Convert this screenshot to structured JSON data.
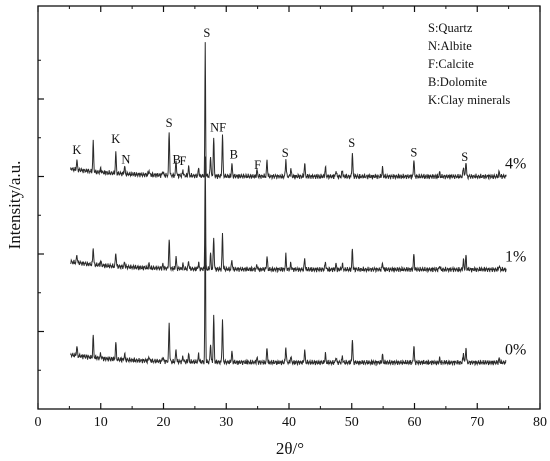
{
  "chart_data": {
    "type": "line",
    "xlabel": "2θ/°",
    "ylabel": "Intensity/a.u.",
    "xlim": [
      0,
      80
    ],
    "x_ticks": [
      "0",
      "10",
      "20",
      "30",
      "40",
      "50",
      "60",
      "70",
      "80"
    ],
    "legend_position": "top-right",
    "legend_entries": [
      "S:Quartz",
      "N:Albite",
      "F:Calcite",
      "B:Dolomite",
      "K:Clay minerals"
    ],
    "series": [
      {
        "name": "4%",
        "baseline": 3,
        "peaks": [
          {
            "x": 6.2,
            "h": 0.12
          },
          {
            "x": 8.8,
            "h": 0.38
          },
          {
            "x": 10.0,
            "h": 0.05
          },
          {
            "x": 12.4,
            "h": 0.27
          },
          {
            "x": 13.8,
            "h": 0.1
          },
          {
            "x": 17.7,
            "h": 0.06
          },
          {
            "x": 19.9,
            "h": 0.06
          },
          {
            "x": 20.9,
            "h": 0.58
          },
          {
            "x": 22.0,
            "h": 0.2
          },
          {
            "x": 23.1,
            "h": 0.07
          },
          {
            "x": 24.0,
            "h": 0.12
          },
          {
            "x": 25.6,
            "h": 0.1
          },
          {
            "x": 26.65,
            "h": 1.73
          },
          {
            "x": 27.5,
            "h": 0.26
          },
          {
            "x": 28.0,
            "h": 0.5
          },
          {
            "x": 29.4,
            "h": 0.54
          },
          {
            "x": 30.9,
            "h": 0.16
          },
          {
            "x": 34.9,
            "h": 0.08
          },
          {
            "x": 36.5,
            "h": 0.21
          },
          {
            "x": 39.5,
            "h": 0.22
          },
          {
            "x": 40.3,
            "h": 0.1
          },
          {
            "x": 42.5,
            "h": 0.17
          },
          {
            "x": 45.8,
            "h": 0.12
          },
          {
            "x": 47.5,
            "h": 0.08
          },
          {
            "x": 48.5,
            "h": 0.08
          },
          {
            "x": 50.1,
            "h": 0.3
          },
          {
            "x": 54.9,
            "h": 0.11
          },
          {
            "x": 59.9,
            "h": 0.22
          },
          {
            "x": 64.0,
            "h": 0.05
          },
          {
            "x": 67.8,
            "h": 0.13
          },
          {
            "x": 68.2,
            "h": 0.2
          },
          {
            "x": 73.5,
            "h": 0.06
          }
        ]
      },
      {
        "name": "1%",
        "baseline": 1.8,
        "peaks": [
          {
            "x": 6.2,
            "h": 0.1
          },
          {
            "x": 8.8,
            "h": 0.22
          },
          {
            "x": 10.0,
            "h": 0.05
          },
          {
            "x": 12.4,
            "h": 0.18
          },
          {
            "x": 13.8,
            "h": 0.06
          },
          {
            "x": 17.7,
            "h": 0.05
          },
          {
            "x": 19.9,
            "h": 0.05
          },
          {
            "x": 20.9,
            "h": 0.38
          },
          {
            "x": 22.0,
            "h": 0.15
          },
          {
            "x": 23.1,
            "h": 0.06
          },
          {
            "x": 24.0,
            "h": 0.1
          },
          {
            "x": 25.6,
            "h": 0.08
          },
          {
            "x": 26.65,
            "h": 1.47
          },
          {
            "x": 27.5,
            "h": 0.2
          },
          {
            "x": 28.0,
            "h": 0.42
          },
          {
            "x": 29.4,
            "h": 0.45
          },
          {
            "x": 30.9,
            "h": 0.12
          },
          {
            "x": 34.9,
            "h": 0.06
          },
          {
            "x": 36.5,
            "h": 0.17
          },
          {
            "x": 39.5,
            "h": 0.18
          },
          {
            "x": 40.3,
            "h": 0.08
          },
          {
            "x": 42.5,
            "h": 0.14
          },
          {
            "x": 45.8,
            "h": 0.1
          },
          {
            "x": 47.5,
            "h": 0.07
          },
          {
            "x": 48.5,
            "h": 0.07
          },
          {
            "x": 50.1,
            "h": 0.26
          },
          {
            "x": 54.9,
            "h": 0.09
          },
          {
            "x": 59.9,
            "h": 0.2
          },
          {
            "x": 64.0,
            "h": 0.05
          },
          {
            "x": 67.8,
            "h": 0.12
          },
          {
            "x": 68.2,
            "h": 0.18
          },
          {
            "x": 73.5,
            "h": 0.05
          }
        ]
      },
      {
        "name": "0%",
        "baseline": 0.6,
        "peaks": [
          {
            "x": 6.2,
            "h": 0.12
          },
          {
            "x": 8.8,
            "h": 0.28
          },
          {
            "x": 10.0,
            "h": 0.06
          },
          {
            "x": 12.4,
            "h": 0.22
          },
          {
            "x": 13.8,
            "h": 0.08
          },
          {
            "x": 17.7,
            "h": 0.06
          },
          {
            "x": 19.9,
            "h": 0.06
          },
          {
            "x": 20.9,
            "h": 0.5
          },
          {
            "x": 22.0,
            "h": 0.16
          },
          {
            "x": 23.1,
            "h": 0.07
          },
          {
            "x": 24.0,
            "h": 0.1
          },
          {
            "x": 25.6,
            "h": 0.1
          },
          {
            "x": 26.65,
            "h": 2.1
          },
          {
            "x": 27.5,
            "h": 0.24
          },
          {
            "x": 28.0,
            "h": 0.6
          },
          {
            "x": 29.4,
            "h": 0.55
          },
          {
            "x": 30.9,
            "h": 0.14
          },
          {
            "x": 34.9,
            "h": 0.06
          },
          {
            "x": 36.5,
            "h": 0.19
          },
          {
            "x": 39.5,
            "h": 0.2
          },
          {
            "x": 40.3,
            "h": 0.08
          },
          {
            "x": 42.5,
            "h": 0.16
          },
          {
            "x": 45.8,
            "h": 0.11
          },
          {
            "x": 47.5,
            "h": 0.07
          },
          {
            "x": 48.5,
            "h": 0.08
          },
          {
            "x": 50.1,
            "h": 0.3
          },
          {
            "x": 54.9,
            "h": 0.1
          },
          {
            "x": 59.9,
            "h": 0.22
          },
          {
            "x": 64.0,
            "h": 0.05
          },
          {
            "x": 67.8,
            "h": 0.12
          },
          {
            "x": 68.2,
            "h": 0.2
          },
          {
            "x": 73.5,
            "h": 0.05
          }
        ]
      }
    ],
    "peak_labels": [
      {
        "text": "K",
        "x": 6.2,
        "y": 3.29
      },
      {
        "text": "K",
        "x": 12.4,
        "y": 3.43
      },
      {
        "text": "N",
        "x": 14.0,
        "y": 3.17
      },
      {
        "text": "S",
        "x": 20.9,
        "y": 3.64
      },
      {
        "text": "B",
        "x": 22.1,
        "y": 3.17
      },
      {
        "text": "F",
        "x": 23.1,
        "y": 3.15
      },
      {
        "text": "S",
        "x": 26.9,
        "y": 4.8
      },
      {
        "text": "NF",
        "x": 28.7,
        "y": 3.58
      },
      {
        "text": "B",
        "x": 31.2,
        "y": 3.23
      },
      {
        "text": "F",
        "x": 35.0,
        "y": 3.1
      },
      {
        "text": "S",
        "x": 39.4,
        "y": 3.25
      },
      {
        "text": "S",
        "x": 50.0,
        "y": 3.38
      },
      {
        "text": "S",
        "x": 59.9,
        "y": 3.26
      },
      {
        "text": "S",
        "x": 68.0,
        "y": 3.2
      }
    ]
  }
}
